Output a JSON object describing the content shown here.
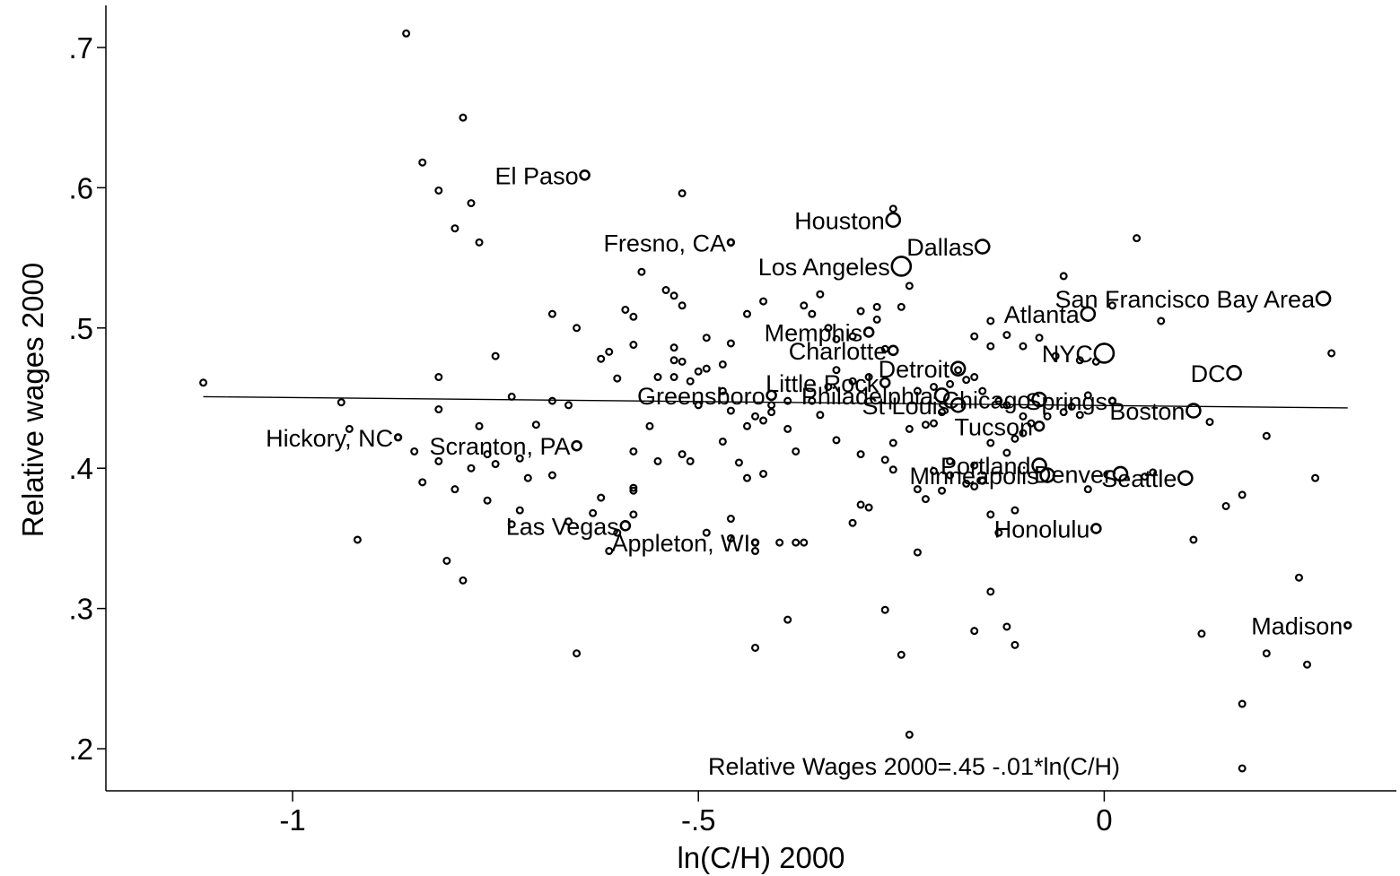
{
  "chart_data": {
    "type": "scatter",
    "xlabel": "ln(C/H) 2000",
    "ylabel": "Relative wages 2000",
    "xlim": [
      -1.23,
      0.36
    ],
    "ylim": [
      0.17,
      0.73
    ],
    "x_ticks": [
      {
        "value": -1,
        "label": "-1"
      },
      {
        "value": -0.5,
        "label": "-.5"
      },
      {
        "value": 0,
        "label": "0"
      }
    ],
    "y_ticks": [
      {
        "value": 0.2,
        "label": ".2"
      },
      {
        "value": 0.3,
        "label": ".3"
      },
      {
        "value": 0.4,
        "label": ".4"
      },
      {
        "value": 0.5,
        "label": ".5"
      },
      {
        "value": 0.6,
        "label": ".6"
      },
      {
        "value": 0.7,
        "label": ".7"
      }
    ],
    "fit_line": {
      "x0": -1.11,
      "y0": 0.451,
      "x1": 0.3,
      "y1": 0.443
    },
    "annotation": "Relative Wages 2000=.45 -.01*ln(C/H)",
    "labeled_points": [
      {
        "name": "El Paso",
        "x": -0.64,
        "y": 0.609,
        "size": 2
      },
      {
        "name": "Houston",
        "x": -0.26,
        "y": 0.577,
        "size": 3
      },
      {
        "name": "Fresno, CA",
        "x": -0.46,
        "y": 0.561,
        "size": 1
      },
      {
        "name": "Dallas",
        "x": -0.15,
        "y": 0.558,
        "size": 3
      },
      {
        "name": "Los Angeles",
        "x": -0.25,
        "y": 0.544,
        "size": 4
      },
      {
        "name": "San Francisco Bay Area",
        "x": 0.27,
        "y": 0.521,
        "size": 3
      },
      {
        "name": "Atlanta",
        "x": -0.02,
        "y": 0.51,
        "size": 3
      },
      {
        "name": "Memphis",
        "x": -0.29,
        "y": 0.497,
        "size": 2
      },
      {
        "name": "NYC",
        "x": 0,
        "y": 0.482,
        "size": 4
      },
      {
        "name": "Charlotte",
        "x": -0.26,
        "y": 0.484,
        "size": 2
      },
      {
        "name": "DC",
        "x": 0.16,
        "y": 0.468,
        "size": 3
      },
      {
        "name": "Detroit",
        "x": -0.18,
        "y": 0.471,
        "size": 3
      },
      {
        "name": "Little Rock",
        "x": -0.27,
        "y": 0.461,
        "size": 2
      },
      {
        "name": "Greensboro",
        "x": -0.41,
        "y": 0.452,
        "size": 2
      },
      {
        "name": "Philadelphia",
        "x": -0.2,
        "y": 0.452,
        "size": 3
      },
      {
        "name": "Chicago",
        "x": -0.08,
        "y": 0.449,
        "size": 3
      },
      {
        "name": "Springs",
        "x": 0.01,
        "y": 0.448,
        "size": 1
      },
      {
        "name": "Boston",
        "x": 0.11,
        "y": 0.441,
        "size": 3
      },
      {
        "name": "St Louis",
        "x": -0.18,
        "y": 0.445,
        "size": 3
      },
      {
        "name": "Tucson",
        "x": -0.08,
        "y": 0.43,
        "size": 2
      },
      {
        "name": "Hickory, NC",
        "x": -0.87,
        "y": 0.422,
        "size": 1
      },
      {
        "name": "Scranton, PA",
        "x": -0.65,
        "y": 0.416,
        "size": 2
      },
      {
        "name": "Portland",
        "x": -0.08,
        "y": 0.402,
        "size": 3
      },
      {
        "name": "Minneapolis",
        "x": -0.07,
        "y": 0.395,
        "size": 3
      },
      {
        "name": "Denver",
        "x": 0.02,
        "y": 0.396,
        "size": 3
      },
      {
        "name": "Seattle",
        "x": 0.1,
        "y": 0.393,
        "size": 3
      },
      {
        "name": "Las Vegas",
        "x": -0.59,
        "y": 0.359,
        "size": 2
      },
      {
        "name": "Honolulu",
        "x": -0.01,
        "y": 0.357,
        "size": 2
      },
      {
        "name": "Appleton, WI",
        "x": -0.43,
        "y": 0.347,
        "size": 1
      },
      {
        "name": "Madison",
        "x": 0.3,
        "y": 0.288,
        "size": 1
      }
    ],
    "points": [
      [
        -0.86,
        0.71
      ],
      [
        -0.79,
        0.65
      ],
      [
        -0.84,
        0.618
      ],
      [
        -0.82,
        0.598
      ],
      [
        -0.78,
        0.589
      ],
      [
        -0.8,
        0.571
      ],
      [
        -0.77,
        0.561
      ],
      [
        -0.52,
        0.596
      ],
      [
        -0.57,
        0.54
      ],
      [
        -0.54,
        0.527
      ],
      [
        -0.53,
        0.523
      ],
      [
        -0.52,
        0.516
      ],
      [
        -0.59,
        0.513
      ],
      [
        -0.58,
        0.508
      ],
      [
        -0.65,
        0.5
      ],
      [
        -0.68,
        0.51
      ],
      [
        -0.62,
        0.478
      ],
      [
        -0.61,
        0.483
      ],
      [
        -0.58,
        0.488
      ],
      [
        -0.53,
        0.486
      ],
      [
        -0.52,
        0.476
      ],
      [
        -0.5,
        0.469
      ],
      [
        -0.49,
        0.471
      ],
      [
        -0.47,
        0.474
      ],
      [
        -0.49,
        0.493
      ],
      [
        -0.46,
        0.489
      ],
      [
        -0.44,
        0.51
      ],
      [
        -0.42,
        0.519
      ],
      [
        -0.37,
        0.516
      ],
      [
        -0.35,
        0.524
      ],
      [
        -0.36,
        0.51
      ],
      [
        -0.3,
        0.512
      ],
      [
        -0.28,
        0.506
      ],
      [
        -0.25,
        0.515
      ],
      [
        -0.31,
        0.494
      ],
      [
        -0.27,
        0.485
      ],
      [
        -0.34,
        0.5
      ],
      [
        -0.33,
        0.47
      ],
      [
        -0.29,
        0.465
      ],
      [
        -0.31,
        0.462
      ],
      [
        -0.34,
        0.458
      ],
      [
        -0.36,
        0.448
      ],
      [
        -0.39,
        0.448
      ],
      [
        -0.41,
        0.445
      ],
      [
        -0.43,
        0.437
      ],
      [
        -0.42,
        0.434
      ],
      [
        -0.44,
        0.43
      ],
      [
        -0.41,
        0.44
      ],
      [
        -0.46,
        0.441
      ],
      [
        -0.47,
        0.455
      ],
      [
        -0.5,
        0.445
      ],
      [
        -0.51,
        0.462
      ],
      [
        -0.53,
        0.465
      ],
      [
        -0.55,
        0.465
      ],
      [
        -0.56,
        0.43
      ],
      [
        -0.55,
        0.405
      ],
      [
        -0.52,
        0.41
      ],
      [
        -0.51,
        0.405
      ],
      [
        -0.47,
        0.419
      ],
      [
        -0.45,
        0.404
      ],
      [
        -0.42,
        0.396
      ],
      [
        -0.44,
        0.393
      ],
      [
        -0.38,
        0.412
      ],
      [
        -0.39,
        0.428
      ],
      [
        -0.35,
        0.438
      ],
      [
        -0.33,
        0.42
      ],
      [
        -0.3,
        0.41
      ],
      [
        -0.27,
        0.406
      ],
      [
        -0.26,
        0.418
      ],
      [
        -0.24,
        0.428
      ],
      [
        -0.22,
        0.431
      ],
      [
        -0.21,
        0.432
      ],
      [
        -0.2,
        0.44
      ],
      [
        -0.23,
        0.455
      ],
      [
        -0.21,
        0.458
      ],
      [
        -0.19,
        0.46
      ],
      [
        -0.17,
        0.463
      ],
      [
        -0.16,
        0.465
      ],
      [
        -0.18,
        0.47
      ],
      [
        -0.15,
        0.455
      ],
      [
        -0.13,
        0.448
      ],
      [
        -0.12,
        0.445
      ],
      [
        -0.1,
        0.437
      ],
      [
        -0.09,
        0.432
      ],
      [
        -0.14,
        0.418
      ],
      [
        -0.12,
        0.411
      ],
      [
        -0.11,
        0.421
      ],
      [
        -0.1,
        0.425
      ],
      [
        -0.07,
        0.437
      ],
      [
        -0.05,
        0.44
      ],
      [
        -0.03,
        0.438
      ],
      [
        -0.02,
        0.452
      ],
      [
        -0.04,
        0.444
      ],
      [
        -0.14,
        0.487
      ],
      [
        -0.12,
        0.495
      ],
      [
        -0.1,
        0.487
      ],
      [
        -0.08,
        0.493
      ],
      [
        -0.06,
        0.48
      ],
      [
        -0.03,
        0.477
      ],
      [
        -0.01,
        0.476
      ],
      [
        -0.16,
        0.494
      ],
      [
        -0.14,
        0.505
      ],
      [
        -0.05,
        0.537
      ],
      [
        0.01,
        0.516
      ],
      [
        0.04,
        0.564
      ],
      [
        0.07,
        0.505
      ],
      [
        -0.26,
        0.585
      ],
      [
        -0.28,
        0.515
      ],
      [
        -0.33,
        0.492
      ],
      [
        -0.24,
        0.53
      ],
      [
        -0.21,
        0.398
      ],
      [
        -0.2,
        0.384
      ],
      [
        -0.19,
        0.395
      ],
      [
        -0.22,
        0.378
      ],
      [
        -0.17,
        0.389
      ],
      [
        -0.16,
        0.387
      ],
      [
        -0.14,
        0.367
      ],
      [
        -0.13,
        0.354
      ],
      [
        -0.11,
        0.37
      ],
      [
        -0.15,
        0.391
      ],
      [
        -0.16,
        0.402
      ],
      [
        -0.19,
        0.405
      ],
      [
        -0.23,
        0.385
      ],
      [
        -0.26,
        0.399
      ],
      [
        -0.29,
        0.372
      ],
      [
        -0.31,
        0.361
      ],
      [
        -0.37,
        0.347
      ],
      [
        -0.38,
        0.347
      ],
      [
        -0.4,
        0.347
      ],
      [
        -0.43,
        0.341
      ],
      [
        -0.46,
        0.364
      ],
      [
        -0.49,
        0.354
      ],
      [
        -0.58,
        0.386
      ],
      [
        -0.58,
        0.367
      ],
      [
        -0.58,
        0.384
      ],
      [
        -0.61,
        0.341
      ],
      [
        -0.62,
        0.379
      ],
      [
        -0.6,
        0.354
      ],
      [
        -0.63,
        0.368
      ],
      [
        -0.66,
        0.362
      ],
      [
        -0.68,
        0.395
      ],
      [
        -0.71,
        0.393
      ],
      [
        -0.72,
        0.407
      ],
      [
        -0.75,
        0.403
      ],
      [
        -0.76,
        0.41
      ],
      [
        -0.78,
        0.4
      ],
      [
        -0.8,
        0.385
      ],
      [
        -0.82,
        0.405
      ],
      [
        -0.84,
        0.39
      ],
      [
        -0.85,
        0.412
      ],
      [
        -0.76,
        0.377
      ],
      [
        -0.72,
        0.37
      ],
      [
        -0.73,
        0.36
      ],
      [
        -0.77,
        0.43
      ],
      [
        -0.7,
        0.431
      ],
      [
        -0.66,
        0.445
      ],
      [
        -0.68,
        0.448
      ],
      [
        -0.73,
        0.451
      ],
      [
        -0.82,
        0.442
      ],
      [
        -0.82,
        0.465
      ],
      [
        -0.75,
        0.48
      ],
      [
        -0.94,
        0.447
      ],
      [
        -0.93,
        0.428
      ],
      [
        -0.92,
        0.349
      ],
      [
        -1.11,
        0.461
      ],
      [
        -0.81,
        0.334
      ],
      [
        -0.79,
        0.32
      ],
      [
        -0.65,
        0.268
      ],
      [
        -0.58,
        0.412
      ],
      [
        -0.53,
        0.477
      ],
      [
        -0.6,
        0.464
      ],
      [
        -0.3,
        0.374
      ],
      [
        -0.27,
        0.299
      ],
      [
        -0.25,
        0.267
      ],
      [
        -0.24,
        0.21
      ],
      [
        -0.23,
        0.34
      ],
      [
        -0.16,
        0.284
      ],
      [
        -0.14,
        0.312
      ],
      [
        -0.12,
        0.287
      ],
      [
        -0.11,
        0.274
      ],
      [
        -0.39,
        0.292
      ],
      [
        -0.43,
        0.272
      ],
      [
        -0.46,
        0.35
      ],
      [
        0.11,
        0.349
      ],
      [
        0.12,
        0.282
      ],
      [
        0.15,
        0.373
      ],
      [
        0.17,
        0.381
      ],
      [
        0.17,
        0.232
      ],
      [
        0.2,
        0.423
      ],
      [
        0.2,
        0.268
      ],
      [
        0.24,
        0.322
      ],
      [
        0.25,
        0.26
      ],
      [
        0.26,
        0.393
      ],
      [
        0.28,
        0.482
      ],
      [
        0.13,
        0.433
      ],
      [
        0.05,
        0.394
      ],
      [
        0.06,
        0.397
      ],
      [
        -0.02,
        0.385
      ],
      [
        0.17,
        0.186
      ]
    ]
  }
}
